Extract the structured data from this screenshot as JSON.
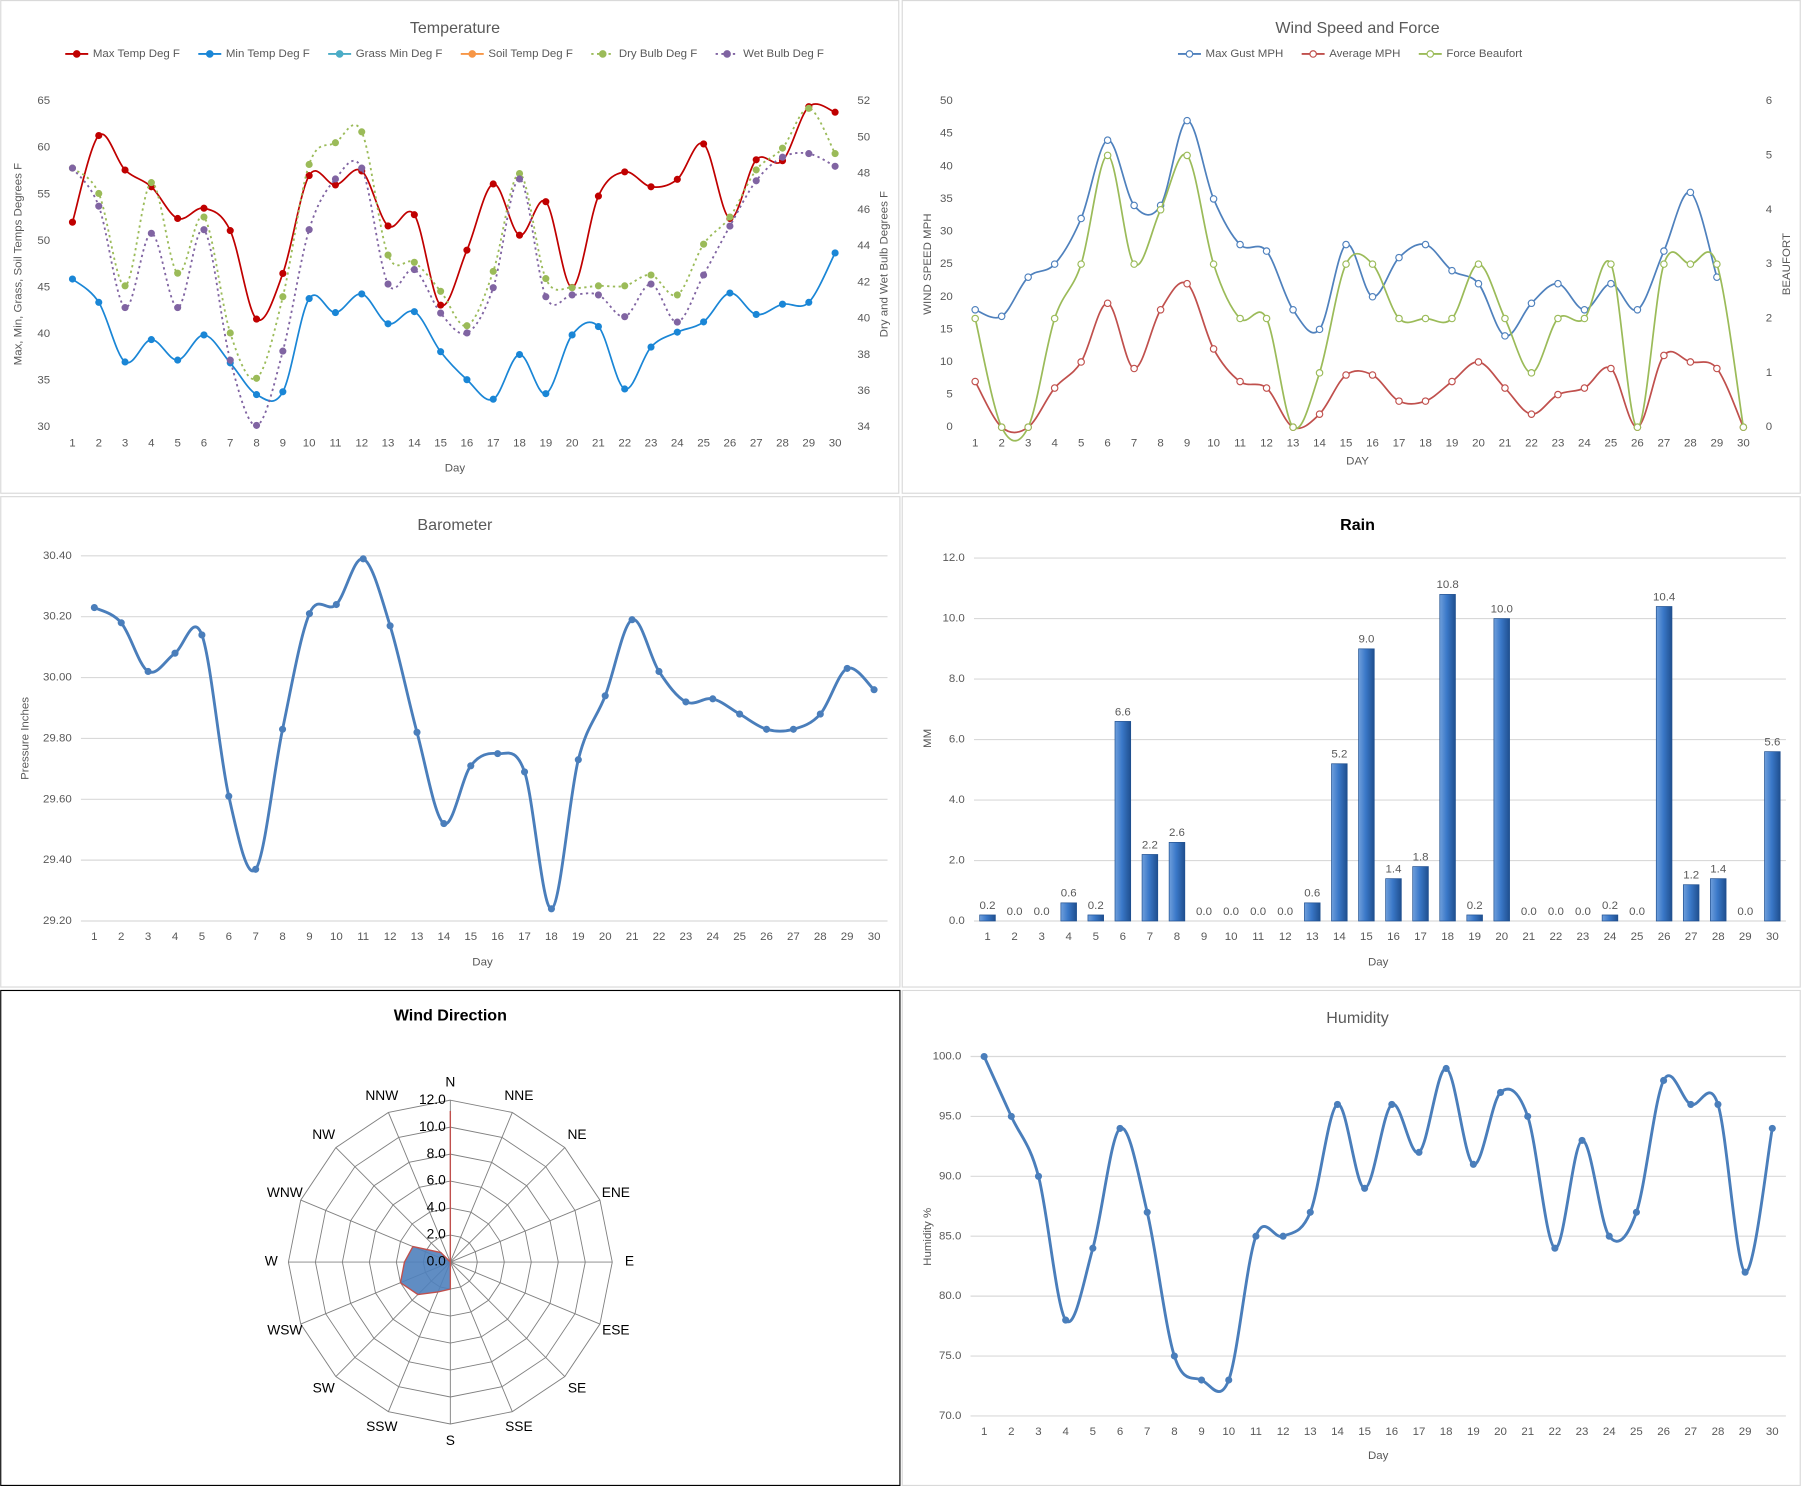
{
  "chart_data": [
    {
      "type": "line",
      "title": "Temperature",
      "x_label": "Day",
      "y_label": "Max, Min, Grass, Soil Temps Degrees  F",
      "y2_label": "Dry and Wet Bulb Degrees F",
      "categories": [
        "1",
        "2",
        "3",
        "4",
        "5",
        "6",
        "7",
        "8",
        "9",
        "10",
        "11",
        "12",
        "13",
        "14",
        "15",
        "16",
        "17",
        "18",
        "19",
        "20",
        "21",
        "22",
        "23",
        "24",
        "25",
        "26",
        "27",
        "28",
        "29",
        "30"
      ],
      "ylim": [
        30,
        65
      ],
      "yticks": [
        30,
        35,
        40,
        45,
        50,
        55,
        60,
        65
      ],
      "y2lim": [
        34,
        52
      ],
      "y2ticks": [
        34,
        36,
        38,
        40,
        42,
        44,
        46,
        48,
        50,
        52
      ],
      "grid": false,
      "smooth": true,
      "marker": "filled",
      "legend": "top",
      "series": [
        {
          "name": "Max Temp Deg F",
          "color": "#c00000",
          "values": [
            52,
            61.3,
            57.6,
            55.8,
            52.4,
            53.5,
            51.1,
            41.6,
            46.5,
            57,
            56,
            57.5,
            51.6,
            52.8,
            43.1,
            49,
            56.1,
            50.6,
            54.2,
            45,
            54.8,
            57.4,
            55.8,
            56.6,
            60.4,
            52.4,
            58.7,
            58.6,
            64.4,
            63.8
          ]
        },
        {
          "name": "Min Temp Deg F",
          "color": "#1a86d6",
          "values": [
            45.9,
            43.4,
            37,
            39.4,
            37.2,
            39.9,
            36.9,
            33.5,
            33.8,
            43.8,
            42.3,
            44.3,
            41.1,
            42.4,
            38.1,
            35.1,
            33,
            37.8,
            33.6,
            39.9,
            40.8,
            34.1,
            38.6,
            40.2,
            41.3,
            44.4,
            42.1,
            43.2,
            43.4,
            48.7
          ]
        },
        {
          "name": "Grass Min Deg F",
          "color": "#4bacc6",
          "values": [
            null,
            null,
            null,
            null,
            null,
            null,
            null,
            null,
            null,
            null,
            null,
            null,
            null,
            null,
            null,
            null,
            null,
            null,
            null,
            null,
            null,
            null,
            null,
            null,
            null,
            null,
            null,
            null,
            null,
            null
          ]
        },
        {
          "name": "Soil Temp Deg F",
          "color": "#f79646",
          "values": [
            null,
            null,
            null,
            null,
            null,
            null,
            null,
            null,
            null,
            null,
            null,
            null,
            null,
            null,
            null,
            null,
            null,
            null,
            null,
            null,
            null,
            null,
            null,
            null,
            null,
            null,
            null,
            null,
            null,
            null
          ]
        },
        {
          "name": "Dry Bulb Deg F",
          "color": "#9bbb59",
          "axis": "y2",
          "line_style": "dotted",
          "values": [
            48.3,
            46.9,
            41.8,
            47.5,
            42.5,
            45.6,
            39.2,
            36.7,
            41.2,
            48.5,
            49.7,
            50.3,
            43.5,
            43.1,
            41.5,
            39.6,
            42.6,
            48,
            42.2,
            41.7,
            41.8,
            41.8,
            42.4,
            41.3,
            44.1,
            45.6,
            48.2,
            49.4,
            51.6,
            49.1
          ]
        },
        {
          "name": "Wet Bulb Deg F",
          "color": "#8064a2",
          "axis": "y2",
          "line_style": "dotted",
          "values": [
            48.3,
            46.2,
            40.6,
            44.7,
            40.6,
            44.9,
            37.7,
            34.1,
            38.2,
            44.9,
            47.7,
            48.3,
            41.9,
            42.7,
            40.3,
            39.2,
            41.7,
            47.7,
            41.2,
            41.3,
            41.3,
            40.1,
            41.9,
            39.8,
            42.4,
            45.1,
            47.6,
            48.9,
            49.1,
            48.4
          ]
        }
      ]
    },
    {
      "type": "line",
      "title": "Wind Speed and Force",
      "x_label": "DAY",
      "y_label": "WIND SPEED MPH",
      "y2_label": "BEAUFORT",
      "categories": [
        "1",
        "2",
        "3",
        "4",
        "5",
        "6",
        "7",
        "8",
        "9",
        "10",
        "11",
        "12",
        "13",
        "14",
        "15",
        "16",
        "17",
        "18",
        "19",
        "20",
        "21",
        "22",
        "23",
        "24",
        "25",
        "26",
        "27",
        "28",
        "29",
        "30"
      ],
      "ylim": [
        0,
        50
      ],
      "yticks": [
        0,
        5,
        10,
        15,
        20,
        25,
        30,
        35,
        40,
        45,
        50
      ],
      "y2lim": [
        0,
        6
      ],
      "y2ticks": [
        0,
        1,
        2,
        3,
        4,
        5,
        6
      ],
      "grid": false,
      "smooth": true,
      "marker": "hollow",
      "legend": "top",
      "series": [
        {
          "name": "Max Gust MPH",
          "color": "#4f81bd",
          "values": [
            18,
            17,
            23,
            25,
            32,
            44,
            34,
            34,
            47,
            35,
            28,
            27,
            18,
            15,
            28,
            20,
            26,
            28,
            24,
            22,
            14,
            19,
            22,
            18,
            22,
            18,
            27,
            36,
            23,
            null
          ]
        },
        {
          "name": "Average MPH",
          "color": "#c0504d",
          "values": [
            7,
            0,
            0,
            6,
            10,
            19,
            9,
            18,
            22,
            12,
            7,
            6,
            0,
            2,
            8,
            8,
            4,
            4,
            7,
            10,
            6,
            2,
            5,
            6,
            9,
            0,
            11,
            10,
            9,
            0
          ]
        },
        {
          "name": "Force Beaufort",
          "color": "#9bbb59",
          "axis": "y2",
          "values": [
            2,
            0,
            0,
            2,
            3,
            5,
            3,
            4,
            5,
            3,
            2,
            2,
            0,
            1,
            3,
            3,
            2,
            2,
            2,
            3,
            2,
            1,
            2,
            2,
            3,
            0,
            3,
            3,
            3,
            0
          ]
        }
      ]
    },
    {
      "type": "line",
      "title": "Barometer",
      "x_label": "Day",
      "y_label": "Pressure Inches",
      "categories": [
        "1",
        "2",
        "3",
        "4",
        "5",
        "6",
        "7",
        "8",
        "9",
        "10",
        "11",
        "12",
        "13",
        "14",
        "15",
        "16",
        "17",
        "18",
        "19",
        "20",
        "21",
        "22",
        "23",
        "24",
        "25",
        "26",
        "27",
        "28",
        "29",
        "30"
      ],
      "ylim": [
        29.2,
        30.4
      ],
      "yticks": [
        {
          "value": 29.2,
          "label": "29.20"
        },
        {
          "value": 29.4,
          "label": "29.40"
        },
        {
          "value": 29.6,
          "label": "29.60"
        },
        {
          "value": 29.8,
          "label": "29.80"
        },
        {
          "value": 30,
          "label": "30.00"
        },
        {
          "value": 30.2,
          "label": "30.20"
        },
        {
          "value": 30.4,
          "label": "30.40"
        }
      ],
      "grid": true,
      "smooth": true,
      "marker": "filled",
      "series": [
        {
          "name": "Pressure",
          "color": "#4a7ebb",
          "values": [
            30.23,
            30.18,
            30.02,
            30.08,
            30.14,
            29.61,
            29.37,
            29.83,
            30.21,
            30.24,
            30.39,
            30.17,
            29.82,
            29.52,
            29.71,
            29.75,
            29.69,
            29.24,
            29.73,
            29.94,
            30.19,
            30.02,
            29.92,
            29.93,
            29.88,
            29.83,
            29.83,
            29.88,
            30.03,
            29.96
          ]
        }
      ]
    },
    {
      "type": "bar",
      "title": "Rain",
      "x_label": "Day",
      "y_label": "MM",
      "color": "#2e6bb5",
      "categories": [
        "1",
        "2",
        "3",
        "4",
        "5",
        "6",
        "7",
        "8",
        "9",
        "10",
        "11",
        "12",
        "13",
        "14",
        "15",
        "16",
        "17",
        "18",
        "19",
        "20",
        "21",
        "22",
        "23",
        "24",
        "25",
        "26",
        "27",
        "28",
        "29",
        "30"
      ],
      "values": [
        0.2,
        0,
        0,
        0.6,
        0.2,
        6.6,
        2.2,
        2.6,
        0,
        0,
        0,
        0,
        0.6,
        5.2,
        9,
        1.4,
        1.8,
        10.8,
        0.2,
        10,
        0,
        0,
        0,
        0.2,
        0,
        10.4,
        1.2,
        1.4,
        0,
        5.6
      ],
      "value_labels": [
        "0.2",
        "0.0",
        "0.0",
        "0.6",
        "0.2",
        "6.6",
        "2.2",
        "2.6",
        "0.0",
        "0.0",
        "0.0",
        "0.0",
        "0.6",
        "5.2",
        "9.0",
        "1.4",
        "1.8",
        "10.8",
        "0.2",
        "10.0",
        "0.0",
        "0.0",
        "0.0",
        "0.2",
        "0.0",
        "10.4",
        "1.2",
        "1.4",
        "0.0",
        "5.6"
      ],
      "ylim": [
        0,
        12
      ],
      "yticks": [
        {
          "value": 0,
          "label": "0.0"
        },
        {
          "value": 2,
          "label": "2.0"
        },
        {
          "value": 4,
          "label": "4.0"
        },
        {
          "value": 6,
          "label": "6.0"
        },
        {
          "value": 8,
          "label": "8.0"
        },
        {
          "value": 10,
          "label": "10.0"
        },
        {
          "value": 12,
          "label": "12.0"
        }
      ],
      "grid": true
    },
    {
      "type": "radar",
      "title": "Wind Direction",
      "color": "#4f81bd",
      "edge_color": "#c0504d",
      "categories": [
        "N",
        "NNE",
        "NE",
        "ENE",
        "E",
        "ESE",
        "SE",
        "SSE",
        "S",
        "SSW",
        "SW",
        "WSW",
        "W",
        "WNW",
        "NW",
        "NNW"
      ],
      "values": [
        11.2,
        0,
        0,
        0,
        0,
        0,
        0,
        0,
        2,
        2.4,
        3.4,
        4,
        3.4,
        3,
        1,
        0
      ],
      "rlim": [
        0,
        12
      ],
      "rticks": [
        {
          "value": 0,
          "label": "0.0"
        },
        {
          "value": 2,
          "label": "2.0"
        },
        {
          "value": 4,
          "label": "4.0"
        },
        {
          "value": 6,
          "label": "6.0"
        },
        {
          "value": 8,
          "label": "8.0"
        },
        {
          "value": 10,
          "label": "10.0"
        },
        {
          "value": 12,
          "label": "12.0"
        }
      ],
      "grid": true
    },
    {
      "type": "line",
      "title": "Humidity",
      "x_label": "Day",
      "y_label": "Humidity %",
      "categories": [
        "1",
        "2",
        "3",
        "4",
        "5",
        "6",
        "7",
        "8",
        "9",
        "10",
        "11",
        "12",
        "13",
        "14",
        "15",
        "16",
        "17",
        "18",
        "19",
        "20",
        "21",
        "22",
        "23",
        "24",
        "25",
        "26",
        "27",
        "28",
        "29",
        "30"
      ],
      "ylim": [
        70,
        100
      ],
      "yticks": [
        {
          "value": 70,
          "label": "70.0"
        },
        {
          "value": 75,
          "label": "75.0"
        },
        {
          "value": 80,
          "label": "80.0"
        },
        {
          "value": 85,
          "label": "85.0"
        },
        {
          "value": 90,
          "label": "90.0"
        },
        {
          "value": 95,
          "label": "95.0"
        },
        {
          "value": 100,
          "label": "100.0"
        }
      ],
      "grid": true,
      "smooth": true,
      "marker": "filled",
      "series": [
        {
          "name": "Humidity",
          "color": "#4a7ebb",
          "values": [
            100,
            95,
            90,
            78,
            84,
            94,
            87,
            75,
            73,
            73,
            85,
            85,
            87,
            96,
            89,
            96,
            92,
            99,
            91,
            97,
            95,
            84,
            93,
            85,
            87,
            98,
            96,
            96,
            82,
            94
          ]
        }
      ]
    }
  ]
}
